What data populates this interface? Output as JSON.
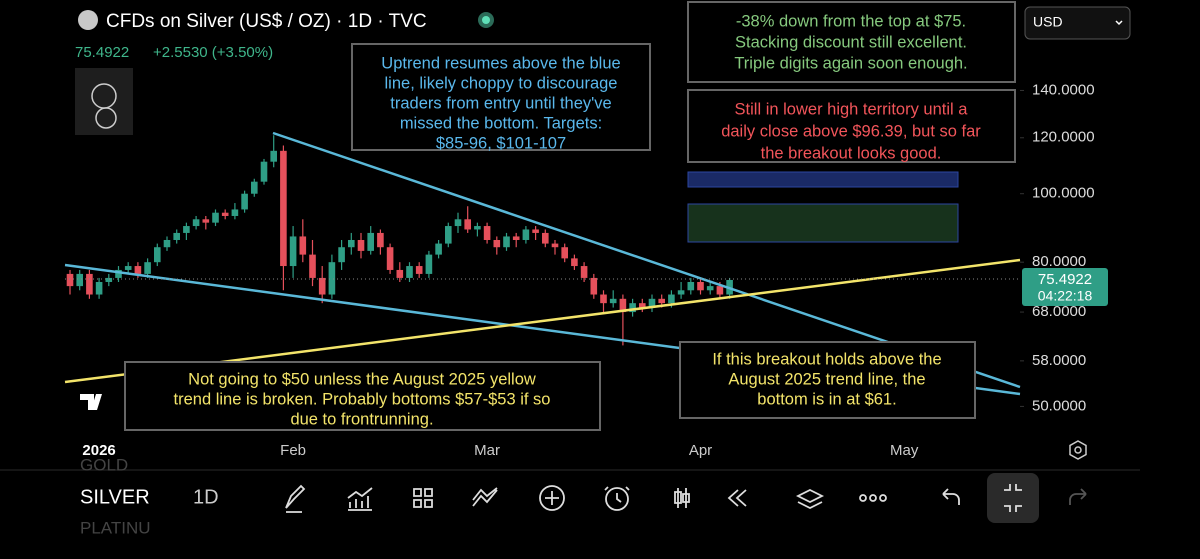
{
  "header": {
    "title": "CFDs on Silver (US$ / OZ) · 1D · TVC",
    "price": "75.4922",
    "change": "+2.5530 (+3.50%)"
  },
  "currency": "USD",
  "annotations": [
    {
      "lines": [
        "Uptrend resumes above the blue",
        "line, likely choppy to discourage",
        "traders from entry until they've",
        "missed the bottom. Targets:",
        "$85-96, $101-107"
      ],
      "color": "#5ab8ec"
    },
    {
      "lines": [
        "-38% down from the top at $75.",
        "Stacking discount still excellent.",
        "Triple digits again soon enough."
      ],
      "color": "#86c97e"
    },
    {
      "lines": [
        "Still in lower high territory until a",
        "daily close above $96.39, but so far",
        "the breakout looks good."
      ],
      "color": "#f2555a"
    },
    {
      "lines": [
        "Not going to $50 unless the August 2025 yellow",
        "trend line is broken. Probably bottoms $57-$53 if so",
        "due to frontrunning."
      ],
      "color": "#f3e46a"
    },
    {
      "lines": [
        "If this breakout holds above the",
        "August 2025 trend line, the",
        "bottom is in at $61."
      ],
      "color": "#f3e46a"
    }
  ],
  "chart_data": {
    "type": "candlestick",
    "log_scale": true,
    "up_color": "#2f9e86",
    "down_color": "#e5505b",
    "categories": [
      null,
      null,
      null,
      "2026",
      null,
      null,
      null,
      null,
      null,
      null,
      null,
      null,
      null,
      null,
      null,
      null,
      null,
      null,
      null,
      null,
      null,
      null,
      null,
      "Feb",
      null,
      null,
      null,
      null,
      null,
      null,
      null,
      null,
      null,
      null,
      null,
      null,
      null,
      null,
      null,
      null,
      null,
      null,
      null,
      "Mar",
      null,
      null,
      null,
      null,
      null,
      null,
      null,
      null,
      null,
      null,
      null,
      null,
      null,
      null,
      null,
      null,
      null,
      null,
      null,
      null,
      null,
      "Apr",
      null,
      null,
      null,
      null,
      null,
      null,
      null,
      null,
      null,
      null,
      null,
      null,
      null,
      null,
      null,
      null,
      null,
      null,
      null,
      null,
      "May",
      null,
      null,
      null,
      null,
      null,
      null,
      null,
      null,
      null,
      null
    ],
    "open": [
      77,
      74,
      77,
      72,
      75,
      76,
      78,
      79,
      77,
      80,
      84,
      86,
      88,
      90,
      92,
      91,
      94,
      93,
      95,
      100,
      104,
      111,
      115,
      79,
      87,
      82,
      76,
      72,
      80,
      84,
      86,
      83,
      88,
      84,
      78,
      76,
      79,
      77,
      82,
      85,
      90,
      92,
      89,
      90,
      86,
      84,
      87,
      86,
      89,
      88,
      85,
      84,
      81,
      79,
      76,
      72,
      70,
      71,
      68,
      70,
      69,
      71,
      70,
      72,
      73,
      75,
      73,
      74,
      72,
      null,
      null,
      null,
      null,
      null,
      null,
      null,
      null,
      null,
      null,
      null,
      null,
      null,
      null,
      null,
      null,
      null,
      null,
      null,
      null,
      null,
      null,
      null,
      null,
      null,
      null,
      null,
      null
    ],
    "high": [
      78,
      78,
      78,
      76,
      77,
      79,
      80,
      80,
      81,
      85,
      87,
      89,
      91,
      93,
      93,
      95,
      95,
      97,
      101,
      105,
      112,
      121,
      117,
      90,
      92,
      86,
      79,
      82,
      86,
      88,
      88,
      90,
      89,
      85,
      80,
      80,
      80,
      83,
      86,
      91,
      94,
      96,
      91,
      91,
      87,
      88,
      88,
      90,
      90,
      89,
      86,
      85,
      82,
      80,
      77,
      73,
      73,
      72,
      71,
      71,
      72,
      72,
      73,
      75,
      76,
      76,
      75,
      75,
      76,
      null,
      null,
      null,
      null,
      null,
      null,
      null,
      null,
      null,
      null,
      null,
      null,
      null,
      null,
      null,
      null,
      null,
      null,
      null,
      null,
      null,
      null,
      null,
      null,
      null,
      null,
      null,
      null
    ],
    "low": [
      72,
      73,
      71,
      71,
      74,
      75,
      77,
      76,
      76,
      79,
      83,
      85,
      86,
      89,
      89,
      90,
      92,
      92,
      94,
      99,
      103,
      109,
      73,
      76,
      80,
      74,
      70,
      71,
      78,
      82,
      81,
      82,
      82,
      77,
      75,
      75,
      76,
      76,
      81,
      84,
      88,
      88,
      87,
      85,
      82,
      83,
      84,
      85,
      86,
      84,
      82,
      80,
      78,
      75,
      71,
      68,
      69,
      61,
      67,
      68,
      68,
      69,
      69,
      71,
      72,
      72,
      72,
      71,
      71,
      null,
      null,
      null,
      null,
      null,
      null,
      null,
      null,
      null,
      null,
      null,
      null,
      null,
      null,
      null,
      null,
      null,
      null,
      null,
      null,
      null,
      null,
      null,
      null,
      null,
      null,
      null,
      null
    ],
    "close": [
      74,
      77,
      72,
      75,
      76,
      78,
      79,
      77,
      80,
      84,
      86,
      88,
      90,
      92,
      91,
      94,
      93,
      95,
      100,
      104,
      111,
      115,
      79,
      87,
      82,
      76,
      72,
      80,
      84,
      86,
      83,
      88,
      84,
      78,
      76,
      79,
      77,
      82,
      85,
      90,
      92,
      89,
      90,
      86,
      84,
      87,
      86,
      89,
      88,
      85,
      84,
      81,
      79,
      76,
      72,
      70,
      71,
      68,
      70,
      69,
      71,
      70,
      72,
      73,
      75,
      73,
      74,
      72,
      75.4922,
      null,
      null,
      null,
      null,
      null,
      null,
      null,
      null,
      null,
      null,
      null,
      null,
      null,
      null,
      null,
      null,
      null,
      null,
      null,
      null,
      null,
      null,
      null,
      null,
      null,
      null,
      null,
      null
    ],
    "ylim": [
      46,
      188
    ],
    "yticks": [
      {
        "value": 50,
        "label": "50.0000"
      },
      {
        "value": 58,
        "label": "58.0000"
      },
      {
        "value": 68,
        "label": "68.0000"
      },
      {
        "value": 80,
        "label": "80.0000"
      },
      {
        "value": 100,
        "label": "100.0000"
      },
      {
        "value": 120,
        "label": "120.0000"
      },
      {
        "value": 140,
        "label": "140.0000"
      }
    ],
    "countdown": "04:22:18"
  },
  "toolbar": {
    "symbol": "SILVER",
    "interval": "1D",
    "symbol_above": "GOLD",
    "symbol_below": "PLATINU"
  }
}
